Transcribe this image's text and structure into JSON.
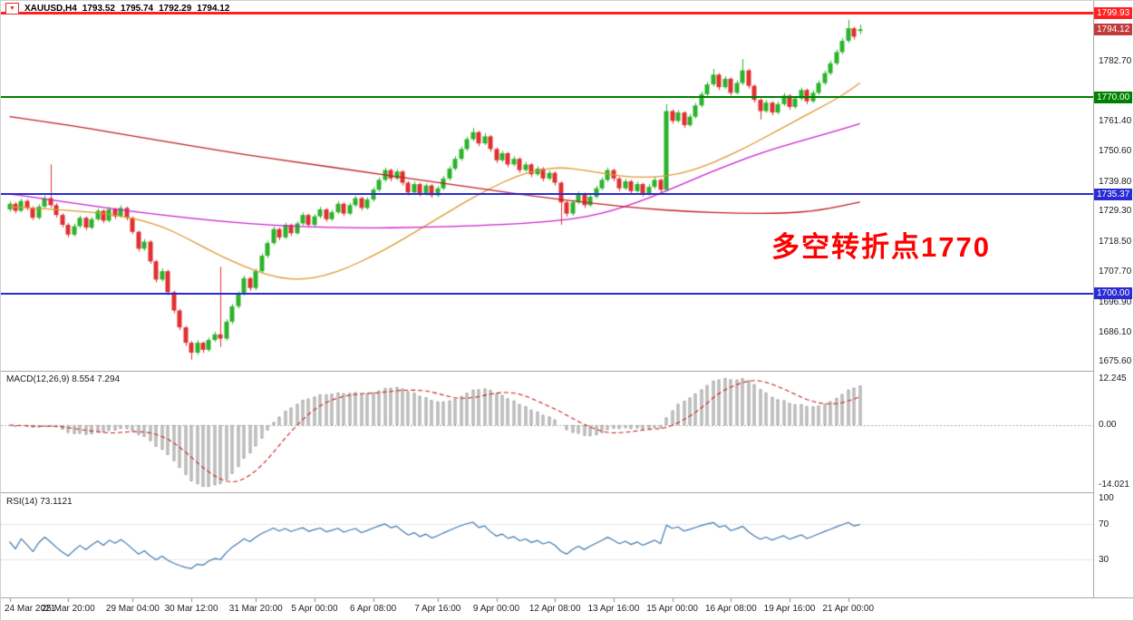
{
  "header": {
    "symbol": "XAUUSD,H4",
    "open": "1793.52",
    "high": "1795.74",
    "low": "1792.29",
    "close": "1794.12",
    "dropdown_icon": "▼"
  },
  "annotation": {
    "text": "多空转折点1770",
    "color": "#ff0000"
  },
  "indicator_macd": {
    "title": "MACD(12,26,9)",
    "value_main": "8.554",
    "value_signal": "7.294",
    "axis_max": "12.245",
    "axis_zero": "0.00",
    "axis_min": "-14.021"
  },
  "indicator_rsi": {
    "title": "RSI(14)",
    "value": "73.1121",
    "axis_top": "100",
    "axis_upper": "70",
    "axis_lower": "30"
  },
  "colors": {
    "candle_up": "#2bb32b",
    "candle_down": "#e03030",
    "macd_hist_fill": "#e4e4e4",
    "macd_hist_stroke": "#9c9c9c",
    "macd_signal": "#cc2222",
    "rsi_line": "#3f78ae"
  },
  "chart_data": {
    "type": "candlestick",
    "title": "XAUUSD,H4 gold price chart",
    "symbol": "XAUUSD",
    "timeframe": "H4",
    "grid": false,
    "ylim": [
      1673.5,
      1801.0
    ],
    "y_ticks": [
      "1782.70",
      "1761.40",
      "1750.60",
      "1739.80",
      "1729.30",
      "1718.50",
      "1707.70",
      "1696.90",
      "1686.10",
      "1675.60"
    ],
    "hlines": [
      {
        "name": "resistance-line",
        "price": 1799.93,
        "label": "1799.93",
        "color": "#fe2020",
        "thickness": 3
      },
      {
        "name": "pivot-line-1770",
        "price": 1770.0,
        "label": "1770.00",
        "color": "#008000",
        "thickness": 2
      },
      {
        "name": "support-line-1735",
        "price": 1735.37,
        "label": "1735.37",
        "color": "#2b2bd5",
        "thickness": 2
      },
      {
        "name": "support-line-1700",
        "price": 1700.0,
        "label": "1700.00",
        "color": "#2b2bd5",
        "thickness": 2
      }
    ],
    "last_price": {
      "price": 1794.12,
      "label": "1794.12",
      "color": "#c23b3b"
    },
    "time_ticks": [
      {
        "i": 0,
        "label": "24 Mar 2021"
      },
      {
        "i": 10,
        "label": "25 Mar 20:00"
      },
      {
        "i": 21,
        "label": "29 Mar 04:00"
      },
      {
        "i": 31,
        "label": "30 Mar 12:00"
      },
      {
        "i": 42,
        "label": "31 Mar 20:00"
      },
      {
        "i": 52,
        "label": "5 Apr 00:00"
      },
      {
        "i": 62,
        "label": "6 Apr 08:00"
      },
      {
        "i": 73,
        "label": "7 Apr 16:00"
      },
      {
        "i": 83,
        "label": "9 Apr 00:00"
      },
      {
        "i": 93,
        "label": "12 Apr 08:00"
      },
      {
        "i": 103,
        "label": "13 Apr 16:00"
      },
      {
        "i": 113,
        "label": "15 Apr 00:00"
      },
      {
        "i": 123,
        "label": "16 Apr 08:00"
      },
      {
        "i": 133,
        "label": "19 Apr 16:00"
      },
      {
        "i": 143,
        "label": "21 Apr 00:00"
      }
    ],
    "ma_lines": [
      {
        "name": "ma-fast-orange",
        "color": "#dd9933",
        "points": [
          [
            0,
            1731
          ],
          [
            12,
            1729.5
          ],
          [
            20,
            1727.5
          ],
          [
            26,
            1724
          ],
          [
            30,
            1720
          ],
          [
            34,
            1715.5
          ],
          [
            38,
            1711.5
          ],
          [
            42,
            1708
          ],
          [
            46,
            1705.5
          ],
          [
            50,
            1705
          ],
          [
            54,
            1706.5
          ],
          [
            58,
            1709.5
          ],
          [
            62,
            1713.5
          ],
          [
            66,
            1718
          ],
          [
            70,
            1723
          ],
          [
            74,
            1728
          ],
          [
            78,
            1733
          ],
          [
            82,
            1737.5
          ],
          [
            86,
            1741.5
          ],
          [
            90,
            1744
          ],
          [
            94,
            1745
          ],
          [
            98,
            1744
          ],
          [
            102,
            1742.5
          ],
          [
            106,
            1741.5
          ],
          [
            110,
            1741.5
          ],
          [
            114,
            1742.5
          ],
          [
            118,
            1745
          ],
          [
            122,
            1748.5
          ],
          [
            126,
            1752.5
          ],
          [
            130,
            1757
          ],
          [
            134,
            1761.5
          ],
          [
            138,
            1766
          ],
          [
            142,
            1770.5
          ],
          [
            145,
            1775
          ]
        ]
      },
      {
        "name": "ma-mid-magenta",
        "color": "#cc22cc",
        "points": [
          [
            0,
            1735.5
          ],
          [
            10,
            1732.5
          ],
          [
            20,
            1729.5
          ],
          [
            30,
            1727
          ],
          [
            40,
            1725
          ],
          [
            50,
            1723.8
          ],
          [
            60,
            1723.3
          ],
          [
            70,
            1723.6
          ],
          [
            80,
            1724.2
          ],
          [
            88,
            1725
          ],
          [
            96,
            1726.5
          ],
          [
            101,
            1728.5
          ],
          [
            105,
            1731
          ],
          [
            109,
            1734
          ],
          [
            113,
            1737.5
          ],
          [
            117,
            1741
          ],
          [
            121,
            1744.5
          ],
          [
            126,
            1748.5
          ],
          [
            131,
            1752
          ],
          [
            136,
            1755
          ],
          [
            141,
            1758
          ],
          [
            145,
            1760.5
          ]
        ]
      },
      {
        "name": "ma-slow-red",
        "color": "#c02020",
        "points": [
          [
            0,
            1763
          ],
          [
            10,
            1760
          ],
          [
            20,
            1756.5
          ],
          [
            30,
            1753
          ],
          [
            40,
            1749.5
          ],
          [
            50,
            1746.5
          ],
          [
            60,
            1743.5
          ],
          [
            70,
            1740.5
          ],
          [
            80,
            1737.5
          ],
          [
            90,
            1734.5
          ],
          [
            100,
            1732
          ],
          [
            108,
            1730.3
          ],
          [
            116,
            1729.2
          ],
          [
            124,
            1728.6
          ],
          [
            132,
            1728.6
          ],
          [
            138,
            1729.6
          ],
          [
            145,
            1732.6
          ]
        ]
      }
    ],
    "candles": [
      [
        1730,
        1732.8,
        1729.2,
        1732
      ],
      [
        1732,
        1732.6,
        1728.6,
        1729.5
      ],
      [
        1729.5,
        1733.9,
        1729,
        1733
      ],
      [
        1733,
        1733.6,
        1729.6,
        1730.5
      ],
      [
        1730.5,
        1731.1,
        1726.2,
        1727
      ],
      [
        1727,
        1731.8,
        1726.4,
        1731
      ],
      [
        1731,
        1735,
        1730.4,
        1734
      ],
      [
        1734,
        1746,
        1730.6,
        1731.5
      ],
      [
        1731.5,
        1732.2,
        1727.1,
        1728
      ],
      [
        1728,
        1728.6,
        1723.6,
        1724.5
      ],
      [
        1724.5,
        1725.2,
        1720,
        1721
      ],
      [
        1721,
        1724.9,
        1720.3,
        1724
      ],
      [
        1724,
        1727.8,
        1723.4,
        1727
      ],
      [
        1727,
        1727.5,
        1722.6,
        1723.5
      ],
      [
        1723.5,
        1727.3,
        1722.9,
        1726.5
      ],
      [
        1726.5,
        1730.3,
        1725.9,
        1729.5
      ],
      [
        1729.5,
        1730,
        1725.1,
        1726
      ],
      [
        1726,
        1730.8,
        1725.4,
        1730
      ],
      [
        1730,
        1730.6,
        1726.6,
        1727.5
      ],
      [
        1727.5,
        1731.4,
        1727,
        1730.5
      ],
      [
        1730.5,
        1731,
        1726.1,
        1727
      ],
      [
        1727,
        1727.5,
        1721.2,
        1722
      ],
      [
        1722,
        1722.5,
        1715,
        1716
      ],
      [
        1716,
        1719.4,
        1715.3,
        1718.5
      ],
      [
        1718.5,
        1719,
        1710.6,
        1711.5
      ],
      [
        1711.5,
        1712,
        1704,
        1705
      ],
      [
        1705,
        1709,
        1704.3,
        1708
      ],
      [
        1708,
        1708.5,
        1699.5,
        1700.5
      ],
      [
        1700.5,
        1701.1,
        1693,
        1694
      ],
      [
        1694,
        1694.6,
        1687,
        1688
      ],
      [
        1688,
        1688.5,
        1681.4,
        1682.5
      ],
      [
        1682.5,
        1683.1,
        1676.5,
        1679
      ],
      [
        1679,
        1683.4,
        1678.2,
        1682.5
      ],
      [
        1682.5,
        1683,
        1678.9,
        1680
      ],
      [
        1680,
        1684.4,
        1679.3,
        1683.5
      ],
      [
        1683.5,
        1686.4,
        1682.8,
        1685.5
      ],
      [
        1685.5,
        1709.5,
        1681,
        1684
      ],
      [
        1684,
        1690.9,
        1683.3,
        1690
      ],
      [
        1690,
        1696.3,
        1689.2,
        1695.5
      ],
      [
        1695.5,
        1700.8,
        1694.7,
        1700
      ],
      [
        1700,
        1706.4,
        1699.3,
        1705.5
      ],
      [
        1705.5,
        1706,
        1701,
        1702
      ],
      [
        1702,
        1708.9,
        1701.3,
        1708
      ],
      [
        1708,
        1714.3,
        1707.2,
        1713.5
      ],
      [
        1713.5,
        1718.8,
        1712.7,
        1718
      ],
      [
        1718,
        1723.9,
        1717.3,
        1723
      ],
      [
        1723,
        1723.5,
        1719,
        1720
      ],
      [
        1720,
        1725.3,
        1719.4,
        1724.5
      ],
      [
        1724.5,
        1725,
        1720.5,
        1721.5
      ],
      [
        1721.5,
        1725.8,
        1720.9,
        1725
      ],
      [
        1725,
        1728.9,
        1724.3,
        1728
      ],
      [
        1728,
        1728.5,
        1723.6,
        1724.5
      ],
      [
        1724.5,
        1728.3,
        1723.9,
        1727.5
      ],
      [
        1727.5,
        1730.9,
        1726.8,
        1730
      ],
      [
        1730,
        1730.5,
        1725.6,
        1726.5
      ],
      [
        1726.5,
        1729.8,
        1725.9,
        1729
      ],
      [
        1729,
        1732.9,
        1728.3,
        1732
      ],
      [
        1732,
        1732.5,
        1727.6,
        1728.5
      ],
      [
        1728.5,
        1732.3,
        1727.9,
        1731.5
      ],
      [
        1731.5,
        1734.9,
        1730.8,
        1734
      ],
      [
        1734,
        1734.5,
        1729.6,
        1730.5
      ],
      [
        1730.5,
        1734.3,
        1729.9,
        1733.5
      ],
      [
        1733.5,
        1737.9,
        1732.8,
        1737
      ],
      [
        1737,
        1741.4,
        1736.3,
        1740.5
      ],
      [
        1740.5,
        1744.9,
        1739.8,
        1744
      ],
      [
        1744,
        1744.5,
        1740,
        1741
      ],
      [
        1741,
        1744.3,
        1740.4,
        1743.5
      ],
      [
        1743.5,
        1744,
        1738.5,
        1739.5
      ],
      [
        1739.5,
        1740.1,
        1735,
        1736
      ],
      [
        1736,
        1739.9,
        1735.4,
        1739
      ],
      [
        1739,
        1739.5,
        1734.6,
        1735.5
      ],
      [
        1735.5,
        1739.3,
        1734.9,
        1738.5
      ],
      [
        1738.5,
        1739,
        1734.1,
        1735
      ],
      [
        1735,
        1738.3,
        1734.4,
        1737.5
      ],
      [
        1737.5,
        1741.9,
        1736.8,
        1741
      ],
      [
        1741,
        1745.4,
        1740.3,
        1744.5
      ],
      [
        1744.5,
        1748.9,
        1743.8,
        1748
      ],
      [
        1748,
        1752.4,
        1747.3,
        1751.5
      ],
      [
        1751.5,
        1755.9,
        1750.8,
        1755
      ],
      [
        1755,
        1759,
        1754.3,
        1757.5
      ],
      [
        1757.5,
        1758,
        1752.5,
        1753.5
      ],
      [
        1753.5,
        1757.2,
        1752.9,
        1756
      ],
      [
        1756,
        1756.5,
        1750.5,
        1751.5
      ],
      [
        1751.5,
        1752,
        1746.5,
        1747.5
      ],
      [
        1747.5,
        1750.9,
        1746.9,
        1750
      ],
      [
        1750,
        1750.5,
        1745,
        1746
      ],
      [
        1746,
        1748.9,
        1745.3,
        1748
      ],
      [
        1748,
        1748.5,
        1743,
        1744
      ],
      [
        1744,
        1746.9,
        1743.4,
        1746
      ],
      [
        1746,
        1746.5,
        1741.5,
        1742.5
      ],
      [
        1742.5,
        1745.4,
        1741.9,
        1744.5
      ],
      [
        1744.5,
        1745,
        1740,
        1741
      ],
      [
        1741,
        1743.9,
        1740.3,
        1743
      ],
      [
        1743,
        1743.5,
        1738.5,
        1739.5
      ],
      [
        1739.5,
        1740,
        1724.5,
        1732.5
      ],
      [
        1732.5,
        1733.1,
        1727.4,
        1728.5
      ],
      [
        1728.5,
        1733.4,
        1727.8,
        1732.5
      ],
      [
        1732.5,
        1736.4,
        1731.8,
        1735.5
      ],
      [
        1735.5,
        1736,
        1730.5,
        1731.5
      ],
      [
        1731.5,
        1735.3,
        1730.9,
        1734.5
      ],
      [
        1734.5,
        1738.4,
        1733.8,
        1737.5
      ],
      [
        1737.5,
        1741.4,
        1736.8,
        1740.5
      ],
      [
        1740.5,
        1744.9,
        1739.8,
        1744
      ],
      [
        1744,
        1744.5,
        1740,
        1741
      ],
      [
        1741,
        1741.5,
        1736.5,
        1737.5
      ],
      [
        1737.5,
        1740.9,
        1736.9,
        1740
      ],
      [
        1740,
        1740.5,
        1735.5,
        1736.5
      ],
      [
        1736.5,
        1739.9,
        1735.9,
        1739
      ],
      [
        1739,
        1739.5,
        1734.6,
        1735.5
      ],
      [
        1735.5,
        1738.9,
        1734.9,
        1738
      ],
      [
        1738,
        1741.4,
        1737.3,
        1740.5
      ],
      [
        1740.5,
        1741,
        1736,
        1737
      ],
      [
        1737,
        1767.5,
        1736.4,
        1765
      ],
      [
        1765,
        1765.6,
        1760.5,
        1761.5
      ],
      [
        1761.5,
        1765.4,
        1760.9,
        1764.5
      ],
      [
        1764.5,
        1765,
        1759,
        1760
      ],
      [
        1760,
        1763.9,
        1759.4,
        1763
      ],
      [
        1763,
        1767.9,
        1762.3,
        1767
      ],
      [
        1767,
        1771.9,
        1766.3,
        1771
      ],
      [
        1771,
        1775.4,
        1770.3,
        1774.5
      ],
      [
        1774.5,
        1780,
        1773.8,
        1778
      ],
      [
        1778,
        1778.5,
        1772.5,
        1773.5
      ],
      [
        1773.5,
        1777.4,
        1772.9,
        1776.5
      ],
      [
        1776.5,
        1777,
        1770.5,
        1771.5
      ],
      [
        1771.5,
        1775.9,
        1770.9,
        1775
      ],
      [
        1775,
        1783.5,
        1774.3,
        1779.5
      ],
      [
        1779.5,
        1780,
        1773,
        1774
      ],
      [
        1774,
        1774.5,
        1768,
        1769
      ],
      [
        1769,
        1769.5,
        1762,
        1765
      ],
      [
        1765,
        1768.9,
        1764.4,
        1768
      ],
      [
        1768,
        1768.5,
        1763.5,
        1764.5
      ],
      [
        1764.5,
        1768.4,
        1763.9,
        1767.5
      ],
      [
        1767.5,
        1771.4,
        1766.8,
        1770.5
      ],
      [
        1770.5,
        1771,
        1765.5,
        1766.5
      ],
      [
        1766.5,
        1770.4,
        1765.9,
        1769.5
      ],
      [
        1769.5,
        1773.4,
        1768.8,
        1772.5
      ],
      [
        1772.5,
        1773,
        1767.5,
        1768.5
      ],
      [
        1768.5,
        1772.4,
        1767.9,
        1771.5
      ],
      [
        1771.5,
        1775.9,
        1770.8,
        1775
      ],
      [
        1775,
        1779.4,
        1774.3,
        1778.5
      ],
      [
        1778.5,
        1782.9,
        1777.8,
        1782
      ],
      [
        1782,
        1786.9,
        1781.3,
        1786
      ],
      [
        1786,
        1790.9,
        1785.3,
        1790
      ],
      [
        1790,
        1797.5,
        1789.3,
        1794.5
      ],
      [
        1794.5,
        1795,
        1790.5,
        1791.5
      ],
      [
        1793.52,
        1795.74,
        1792.29,
        1794.12
      ]
    ]
  }
}
